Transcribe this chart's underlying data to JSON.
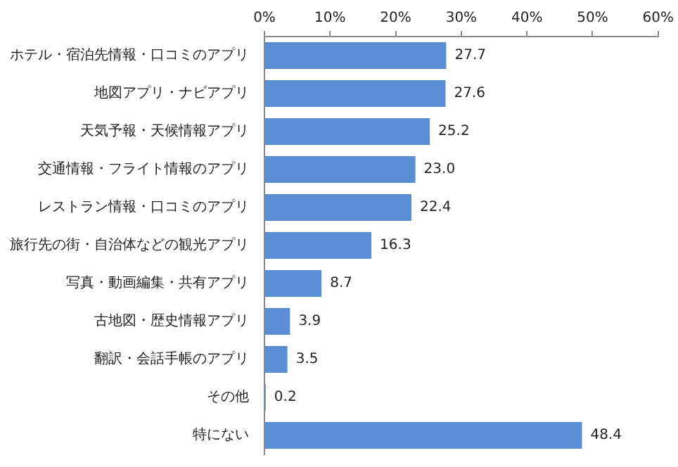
{
  "chart_data": {
    "type": "bar",
    "orientation": "horizontal",
    "categories": [
      "ホテル・宿泊先情報・口コミのアプリ",
      "地図アプリ・ナビアプリ",
      "天気予報・天候情報アプリ",
      "交通情報・フライト情報のアプリ",
      "レストラン情報・口コミのアプリ",
      "旅行先の街・自治体などの観光アプリ",
      "写真・動画編集・共有アプリ",
      "古地図・歴史情報アプリ",
      "翻訳・会話手帳のアプリ",
      "その他",
      "特にない"
    ],
    "values": [
      27.7,
      27.6,
      25.2,
      23.0,
      22.4,
      16.3,
      8.7,
      3.9,
      3.5,
      0.2,
      48.4
    ],
    "value_labels": [
      "27.7",
      "27.6",
      "25.2",
      "23.0",
      "22.4",
      "16.3",
      "8.7",
      "3.9",
      "3.5",
      "0.2",
      "48.4"
    ],
    "color": "#5a8ed4",
    "xlim": [
      0,
      60
    ],
    "xticks": [
      {
        "value": 0,
        "label": "0%"
      },
      {
        "value": 10,
        "label": "10%"
      },
      {
        "value": 20,
        "label": "20%"
      },
      {
        "value": 30,
        "label": "30%"
      },
      {
        "value": 40,
        "label": "40%"
      },
      {
        "value": 50,
        "label": "50%"
      },
      {
        "value": 60,
        "label": "60%"
      }
    ],
    "grid": false,
    "legend": false
  }
}
